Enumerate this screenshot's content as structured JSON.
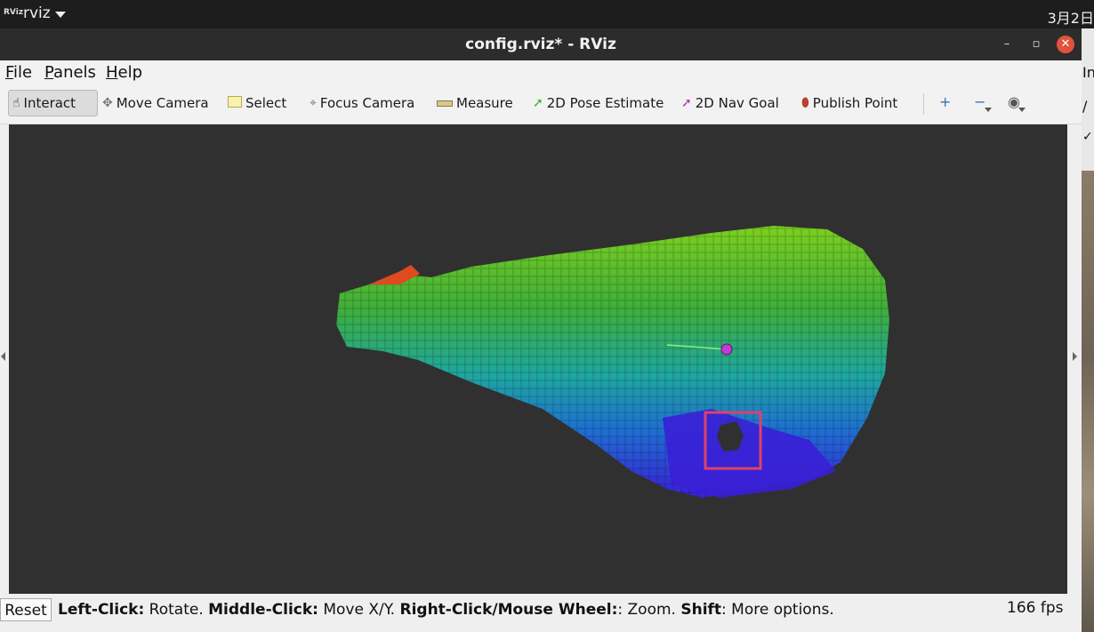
{
  "system_bar": {
    "app_logo": "RViz",
    "app_name": "rviz",
    "clock": "3月2日"
  },
  "window": {
    "title": "config.rviz* - RViz",
    "min_symbol": "–",
    "max_symbol": "▫",
    "close_symbol": "✕"
  },
  "menubar": {
    "items": [
      {
        "label": "File",
        "mnemonic": "F",
        "rest": "ile"
      },
      {
        "label": "Panels",
        "mnemonic": "P",
        "rest": "anels"
      },
      {
        "label": "Help",
        "mnemonic": "H",
        "rest": "elp"
      }
    ]
  },
  "toolbar": {
    "tools": [
      {
        "label": "Interact",
        "icon": "hand-icon",
        "active": true
      },
      {
        "label": "Move Camera",
        "icon": "move-camera-icon",
        "active": false
      },
      {
        "label": "Select",
        "icon": "select-icon",
        "active": false
      },
      {
        "label": "Focus Camera",
        "icon": "focus-camera-icon",
        "active": false
      },
      {
        "label": "Measure",
        "icon": "ruler-icon",
        "active": false
      },
      {
        "label": "2D Pose Estimate",
        "icon": "pose-arrow-icon",
        "active": false
      },
      {
        "label": "2D Nav Goal",
        "icon": "nav-goal-arrow-icon",
        "active": false
      },
      {
        "label": "Publish Point",
        "icon": "map-pin-icon",
        "active": false
      }
    ],
    "extra": [
      {
        "name": "plus-icon",
        "symbol": "+"
      },
      {
        "name": "minus-icon",
        "symbol": "−"
      },
      {
        "name": "eye-icon",
        "symbol": "◉"
      }
    ]
  },
  "statusbar": {
    "reset_label": "Reset",
    "hint_segments": [
      {
        "bold": "Left-Click:",
        "text": " Rotate. "
      },
      {
        "bold": "Middle-Click:",
        "text": " Move X/Y. "
      },
      {
        "bold": "Right-Click/Mouse Wheel:",
        "text": ": Zoom. "
      },
      {
        "bold": "Shift",
        "text": ": More options."
      }
    ],
    "fps": "166 fps"
  },
  "edge": {
    "e1": "In",
    "e2": "/",
    "e3": "✓"
  },
  "colors": {
    "viewport_bg": "#303030",
    "low_voxel": "#3a1fd6",
    "mid_voxel": "#1aa6a6",
    "high_voxel": "#6cc52a",
    "top_voxel": "#e04a20",
    "marker_box": "#e0406a",
    "marker_dot": "#c23bd6"
  }
}
